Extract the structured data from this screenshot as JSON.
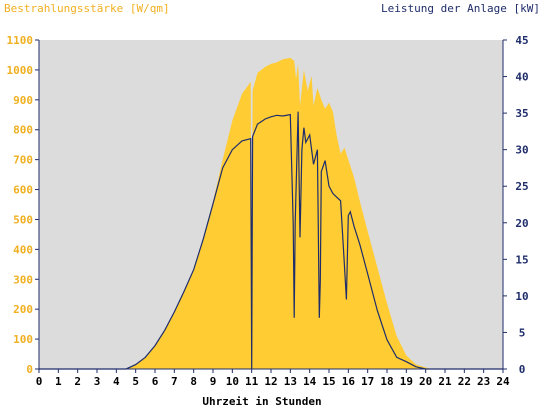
{
  "chart_data": {
    "type": "area",
    "left_title": "Bestrahlungsstärke [W/qm]",
    "right_title": "Leistung der Anlage [kW]",
    "xlabel": "Uhrzeit in Stunden",
    "xlim": [
      0,
      24
    ],
    "ylim_left": [
      0,
      1100
    ],
    "ylim_right": [
      0,
      45
    ],
    "x_ticks": [
      "0",
      "1",
      "2",
      "3",
      "4",
      "5",
      "6",
      "7",
      "8",
      "9",
      "10",
      "11",
      "12",
      "13",
      "14",
      "15",
      "16",
      "17",
      "18",
      "19",
      "20",
      "21",
      "22",
      "23",
      "24"
    ],
    "y_ticks_left": [
      "0",
      "100",
      "200",
      "300",
      "400",
      "500",
      "600",
      "700",
      "800",
      "900",
      "1000",
      "1100"
    ],
    "y_ticks_right": [
      "0",
      "5",
      "10",
      "15",
      "20",
      "25",
      "30",
      "35",
      "40",
      "45"
    ],
    "grid": false,
    "colors": {
      "plot_bg": "#dcdcdc",
      "irradiance": "#ffcc33",
      "power": "#1f2d6b",
      "left_axis_text": "#f0b020",
      "right_axis_text": "#1f2d6b",
      "axis": "#1f2d6b"
    },
    "series": [
      {
        "name": "Bestrahlungsstärke",
        "axis": "left",
        "x": [
          0,
          4.5,
          5.0,
          5.5,
          6.0,
          6.5,
          7.0,
          7.5,
          8.0,
          8.5,
          9.0,
          9.5,
          10.0,
          10.5,
          10.95,
          11.0,
          11.05,
          11.3,
          11.7,
          12.0,
          12.3,
          12.6,
          13.0,
          13.2,
          13.3,
          13.4,
          13.5,
          13.7,
          13.9,
          14.1,
          14.2,
          14.4,
          14.6,
          14.8,
          15.0,
          15.2,
          15.4,
          15.6,
          15.8,
          16.0,
          16.3,
          16.6,
          17.0,
          17.5,
          18.0,
          18.5,
          19.0,
          19.5,
          20.0,
          20.3,
          20.5,
          24
        ],
        "values": [
          0,
          0,
          15,
          40,
          80,
          130,
          190,
          260,
          330,
          430,
          560,
          700,
          830,
          920,
          960,
          0,
          930,
          990,
          1010,
          1020,
          1025,
          1035,
          1040,
          1030,
          970,
          1020,
          880,
          1000,
          930,
          980,
          880,
          940,
          900,
          870,
          890,
          860,
          780,
          720,
          740,
          700,
          640,
          560,
          460,
          340,
          220,
          110,
          45,
          15,
          5,
          0,
          0,
          0
        ]
      },
      {
        "name": "Leistung der Anlage",
        "axis": "right",
        "x": [
          0,
          4.5,
          5.0,
          5.5,
          6.0,
          6.5,
          7.0,
          7.5,
          8.0,
          8.5,
          9.0,
          9.5,
          10.0,
          10.5,
          10.95,
          11.0,
          11.05,
          11.3,
          11.7,
          12.0,
          12.3,
          12.6,
          13.0,
          13.15,
          13.2,
          13.25,
          13.4,
          13.5,
          13.6,
          13.7,
          13.8,
          14.0,
          14.2,
          14.4,
          14.5,
          14.55,
          14.6,
          14.8,
          15.0,
          15.2,
          15.4,
          15.6,
          15.8,
          15.9,
          16.0,
          16.1,
          16.3,
          16.6,
          17.0,
          17.5,
          18.0,
          18.5,
          19.0,
          19.5,
          20.0,
          20.3,
          20.5,
          24
        ],
        "values": [
          0,
          0,
          0.6,
          1.6,
          3.2,
          5.3,
          7.8,
          10.6,
          13.6,
          17.8,
          22.6,
          27.5,
          30.0,
          31.2,
          31.5,
          0,
          31.8,
          33.5,
          34.2,
          34.5,
          34.7,
          34.6,
          34.8,
          20.0,
          7.0,
          20.0,
          35.2,
          18.0,
          30.0,
          33.0,
          31.0,
          32.0,
          28.0,
          30.0,
          7.0,
          12.0,
          27.0,
          28.5,
          25.0,
          24.0,
          23.5,
          23.0,
          14.0,
          9.5,
          21.0,
          21.5,
          19.5,
          17.0,
          13.0,
          8.0,
          4.0,
          1.6,
          1.0,
          0.3,
          0.0,
          0,
          0,
          0
        ]
      }
    ]
  }
}
